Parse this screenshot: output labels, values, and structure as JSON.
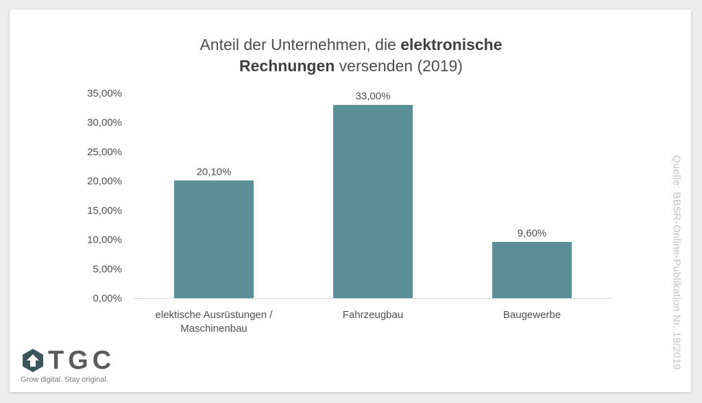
{
  "chart_data": {
    "type": "bar",
    "title_part1": "Anteil der Unternehmen, die ",
    "title_bold1": "elektronische",
    "title_bold2": "Rechnungen",
    "title_part2": " versenden (2019)",
    "categories": [
      [
        "elektische Ausrüstungen /",
        "Maschinenbau"
      ],
      [
        "Fahrzeugbau"
      ],
      [
        "Baugewerbe"
      ]
    ],
    "values": [
      20.1,
      33.0,
      9.6
    ],
    "data_labels": [
      "20,10%",
      "33,00%",
      "9,60%"
    ],
    "ylim": [
      0,
      35
    ],
    "yticks": [
      0,
      5,
      10,
      15,
      20,
      25,
      30,
      35
    ],
    "ytick_labels": [
      "0,00%",
      "5,00%",
      "10,00%",
      "15,00%",
      "20,00%",
      "25,00%",
      "30,00%",
      "35,00%"
    ],
    "grid": false,
    "bar_color": "#5b8f98",
    "xlabel": "",
    "ylabel": ""
  },
  "source_note": "Quelle: BBSR-Online-Publikation Nr. 19/2019",
  "logo": {
    "name": "TGC",
    "tagline": "Grow digital. Stay original.",
    "icon": "tgc-logo-icon"
  },
  "colors": {
    "title": "#4d4d4d",
    "axis_text": "#4d4d4d",
    "source": "#c2c2c2",
    "logo_mark": "#3d5559"
  }
}
